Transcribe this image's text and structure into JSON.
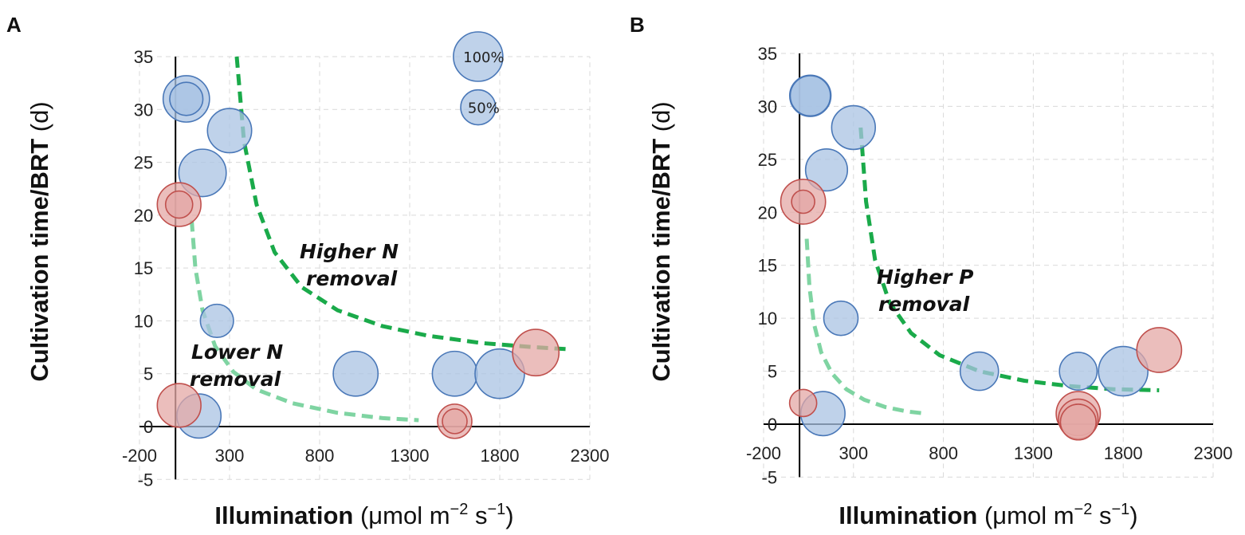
{
  "colors": {
    "blue_fill": "#a9c3e3",
    "blue_edge": "#4a78b8",
    "red_fill": "#e4a8a6",
    "red_edge": "#c0504d",
    "green_dark": "#1aaa4a",
    "green_light": "#7fd4a2"
  },
  "chart_data": [
    {
      "type": "scatter",
      "panel": "A",
      "title": "",
      "xlabel_bold": "Illumination",
      "xlabel_unit": "(μmol m",
      "xlabel_sup1": "−2",
      "xlabel_mid": " s",
      "xlabel_sup2": "−1",
      "xlabel_end": ")",
      "ylabel_bold": "Cultivation time/BRT",
      "ylabel_unit": " (d)",
      "xlim": [
        -200,
        2300
      ],
      "ylim": [
        -5,
        35
      ],
      "x_ticks": [
        -200,
        300,
        800,
        1300,
        1800,
        2300
      ],
      "x_tick_labels": [
        "-200",
        "300",
        "800",
        "1300",
        "1800",
        "2300"
      ],
      "y_ticks": [
        -5,
        0,
        5,
        10,
        15,
        20,
        25,
        30,
        35
      ],
      "y_tick_labels": [
        "-5",
        "0",
        "5",
        "10",
        "15",
        "20",
        "25",
        "30",
        "35"
      ],
      "bubble_legend": [
        {
          "label": "100%",
          "x": 1680,
          "y": 35,
          "pct": 100
        },
        {
          "label": "50%",
          "x": 1680,
          "y": 30.2,
          "pct": 50
        }
      ],
      "points": [
        {
          "x": 60,
          "y": 31,
          "pct": 88,
          "group": "blue"
        },
        {
          "x": 60,
          "y": 31,
          "pct": 45,
          "group": "blue",
          "dark": true
        },
        {
          "x": 300,
          "y": 28,
          "pct": 80,
          "group": "blue"
        },
        {
          "x": 150,
          "y": 24,
          "pct": 92,
          "group": "blue"
        },
        {
          "x": 230,
          "y": 10,
          "pct": 45,
          "group": "blue"
        },
        {
          "x": 1000,
          "y": 5,
          "pct": 82,
          "group": "blue"
        },
        {
          "x": 1550,
          "y": 5,
          "pct": 82,
          "group": "blue"
        },
        {
          "x": 1800,
          "y": 5,
          "pct": 100,
          "group": "blue"
        },
        {
          "x": 130,
          "y": 1,
          "pct": 80,
          "group": "blue"
        },
        {
          "x": 20,
          "y": 21,
          "pct": 78,
          "group": "red"
        },
        {
          "x": 20,
          "y": 21,
          "pct": 30,
          "group": "red",
          "dark": true
        },
        {
          "x": 20,
          "y": 2,
          "pct": 78,
          "group": "red"
        },
        {
          "x": 2000,
          "y": 7,
          "pct": 88,
          "group": "red"
        },
        {
          "x": 1550,
          "y": 0.5,
          "pct": 48,
          "group": "red"
        },
        {
          "x": 1550,
          "y": 0.5,
          "pct": 25,
          "group": "red"
        }
      ],
      "curves": [
        {
          "name": "higher-removal-curve",
          "color_key": "green_dark",
          "x": [
            340,
            380,
            450,
            550,
            700,
            900,
            1150,
            1400,
            1700,
            2000,
            2200
          ],
          "y": [
            35,
            27,
            21,
            16.5,
            13.2,
            11,
            9.5,
            8.6,
            7.9,
            7.5,
            7.3
          ]
        },
        {
          "name": "lower-removal-curve",
          "color_key": "green_light",
          "x": [
            90,
            110,
            150,
            220,
            320,
            450,
            650,
            900,
            1150,
            1350
          ],
          "y": [
            19.5,
            15,
            11,
            7.6,
            5.2,
            3.5,
            2.2,
            1.3,
            0.8,
            0.6
          ]
        }
      ],
      "annotations": [
        {
          "name": "higher-label",
          "lines": [
            "Higher N",
            "removal"
          ]
        },
        {
          "name": "lower-label",
          "lines": [
            "Lower N",
            "removal"
          ]
        }
      ]
    },
    {
      "type": "scatter",
      "panel": "B",
      "title": "",
      "xlabel_bold": "Illumination",
      "xlabel_unit": "(μmol m",
      "xlabel_sup1": "−2",
      "xlabel_mid": " s",
      "xlabel_sup2": "−1",
      "xlabel_end": ")",
      "ylabel_bold": "Cultivation time/BRT",
      "ylabel_unit": " (d)",
      "xlim": [
        -200,
        2300
      ],
      "ylim": [
        -5,
        35
      ],
      "x_ticks": [
        -200,
        300,
        800,
        1300,
        1800,
        2300
      ],
      "x_tick_labels": [
        "-200",
        "300",
        "800",
        "1300",
        "1800",
        "2300"
      ],
      "y_ticks": [
        -5,
        0,
        5,
        10,
        15,
        20,
        25,
        30,
        35
      ],
      "y_tick_labels": [
        "-5",
        "0",
        "5",
        "10",
        "15",
        "20",
        "25",
        "30",
        "35"
      ],
      "bubble_legend": [],
      "points": [
        {
          "x": 60,
          "y": 31,
          "pct": 70,
          "group": "blue",
          "dark": true
        },
        {
          "x": 60,
          "y": 31,
          "pct": 66,
          "group": "blue",
          "dark": true
        },
        {
          "x": 300,
          "y": 28,
          "pct": 78,
          "group": "blue"
        },
        {
          "x": 150,
          "y": 24,
          "pct": 72,
          "group": "blue"
        },
        {
          "x": 230,
          "y": 10,
          "pct": 48,
          "group": "blue"
        },
        {
          "x": 1000,
          "y": 5,
          "pct": 60,
          "group": "blue"
        },
        {
          "x": 1550,
          "y": 5,
          "pct": 58,
          "group": "blue"
        },
        {
          "x": 1800,
          "y": 5,
          "pct": 100,
          "group": "blue"
        },
        {
          "x": 130,
          "y": 1,
          "pct": 80,
          "group": "blue"
        },
        {
          "x": 20,
          "y": 21,
          "pct": 82,
          "group": "red"
        },
        {
          "x": 20,
          "y": 21,
          "pct": 22,
          "group": "red",
          "dark": true
        },
        {
          "x": 20,
          "y": 2,
          "pct": 30,
          "group": "red"
        },
        {
          "x": 2000,
          "y": 7,
          "pct": 82,
          "group": "red"
        },
        {
          "x": 1550,
          "y": 1,
          "pct": 80,
          "group": "red"
        },
        {
          "x": 1550,
          "y": 0.5,
          "pct": 64,
          "group": "red"
        },
        {
          "x": 1550,
          "y": 0.2,
          "pct": 52,
          "group": "red"
        }
      ],
      "curves": [
        {
          "name": "higher-removal-curve",
          "color_key": "green_dark",
          "x": [
            340,
            370,
            420,
            500,
            620,
            780,
            1000,
            1250,
            1500,
            1750,
            2000
          ],
          "y": [
            28,
            21,
            15.5,
            11.5,
            8.6,
            6.5,
            5,
            4.1,
            3.6,
            3.3,
            3.2
          ]
        },
        {
          "name": "lower-removal-curve",
          "color_key": "green_light",
          "x": [
            40,
            55,
            80,
            120,
            180,
            260,
            360,
            480,
            600,
            700
          ],
          "y": [
            17.5,
            13,
            9.5,
            6.8,
            4.8,
            3.3,
            2.3,
            1.6,
            1.2,
            1.0
          ]
        }
      ],
      "annotations": [
        {
          "name": "higher-label",
          "lines": [
            "Higher P",
            "removal"
          ]
        }
      ]
    }
  ]
}
